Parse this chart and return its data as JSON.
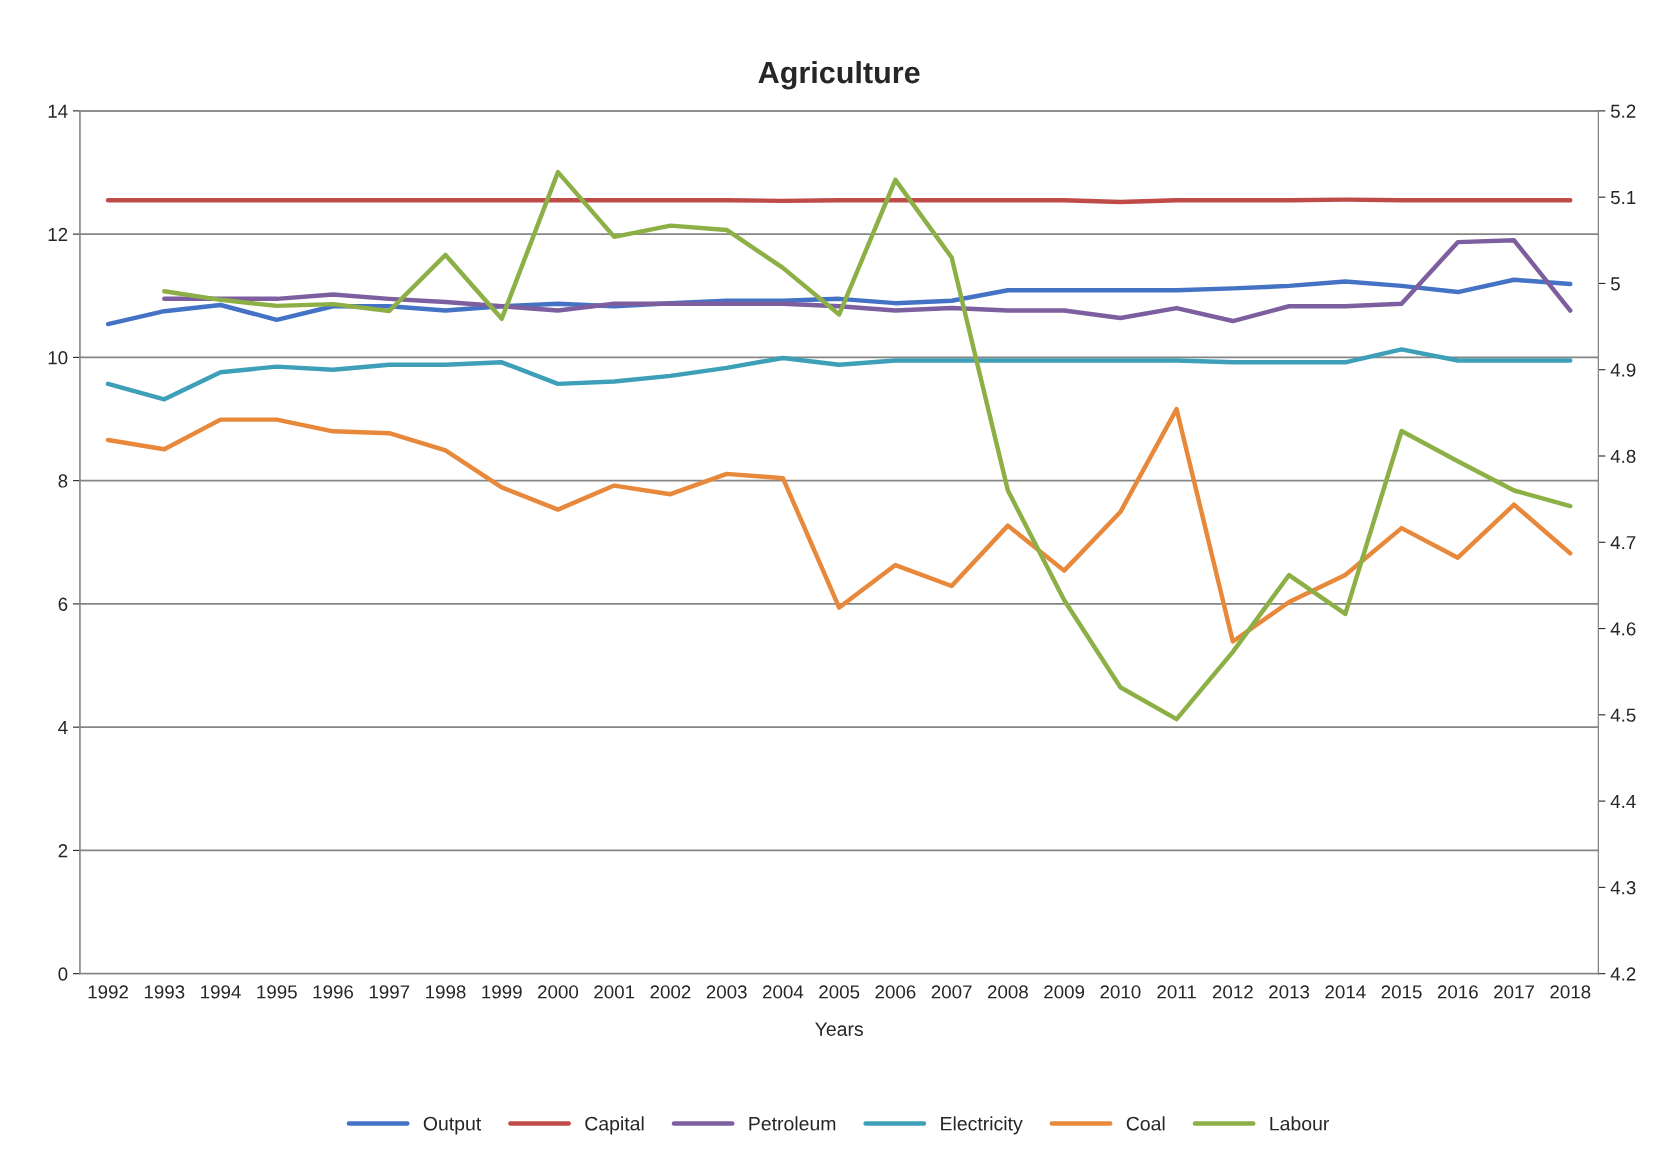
{
  "chart_data": {
    "type": "line",
    "title": "Agriculture",
    "xlabel": "Years",
    "categories": [
      "1992",
      "1993",
      "1994",
      "1995",
      "1996",
      "1997",
      "1998",
      "1999",
      "2000",
      "2001",
      "2002",
      "2003",
      "2004",
      "2005",
      "2006",
      "2007",
      "2008",
      "2009",
      "2010",
      "2011",
      "2012",
      "2013",
      "2014",
      "2015",
      "2016",
      "2017",
      "2018"
    ],
    "series": [
      {
        "name": "Output",
        "color": "#4472c4",
        "values": [
          10.54,
          10.75,
          10.85,
          10.61,
          10.83,
          10.83,
          10.76,
          10.83,
          10.87,
          10.83,
          10.88,
          10.92,
          10.92,
          10.95,
          10.88,
          10.92,
          11.09,
          11.09,
          11.09,
          11.09,
          11.12,
          11.16,
          11.23,
          11.16,
          11.06,
          11.26,
          11.19
        ]
      },
      {
        "name": "Capital",
        "color": "#be4b48",
        "values": [
          12.55,
          12.55,
          12.55,
          12.55,
          12.55,
          12.55,
          12.55,
          12.55,
          12.55,
          12.55,
          12.55,
          12.55,
          12.54,
          12.55,
          12.55,
          12.55,
          12.55,
          12.55,
          12.52,
          12.55,
          12.55,
          12.55,
          12.56,
          12.55,
          12.55,
          12.55,
          12.55
        ]
      },
      {
        "name": "Petroleum",
        "color": "#7d5fa0",
        "values": [
          null,
          10.95,
          10.95,
          10.95,
          11.02,
          10.95,
          10.9,
          10.83,
          10.76,
          10.87,
          10.87,
          10.87,
          10.87,
          10.83,
          10.76,
          10.8,
          10.76,
          10.76,
          10.64,
          10.8,
          10.59,
          10.83,
          10.83,
          10.87,
          11.87,
          11.9,
          10.76
        ]
      },
      {
        "name": "Electricity",
        "color": "#3ea0b8",
        "values": [
          9.57,
          9.32,
          9.76,
          9.85,
          9.8,
          9.88,
          9.88,
          9.92,
          9.57,
          9.61,
          9.7,
          9.83,
          9.99,
          9.88,
          9.95,
          9.95,
          9.95,
          9.95,
          9.95,
          9.95,
          9.92,
          9.92,
          9.92,
          10.13,
          9.95,
          9.95,
          9.95
        ]
      },
      {
        "name": "Coal",
        "color": "#e8883a",
        "values": [
          8.66,
          8.51,
          8.99,
          8.99,
          8.8,
          8.77,
          8.49,
          7.89,
          7.53,
          7.92,
          7.78,
          8.11,
          8.04,
          5.94,
          6.63,
          6.29,
          7.27,
          6.54,
          7.49,
          9.16,
          5.39,
          6.03,
          6.47,
          7.23,
          6.75,
          7.61,
          6.82
        ]
      },
      {
        "name": "Labour",
        "color": "#8cb046",
        "axis": "y2",
        "values": [
          null,
          4.991,
          4.981,
          4.974,
          4.976,
          4.968,
          5.033,
          4.959,
          5.129,
          5.054,
          5.067,
          5.062,
          5.018,
          4.964,
          5.12,
          5.03,
          4.76,
          4.633,
          4.532,
          4.495,
          4.573,
          4.662,
          4.617,
          4.829,
          4.794,
          4.76,
          4.742
        ]
      }
    ],
    "ylim": [
      0,
      14
    ],
    "yticks": [
      0,
      2,
      4,
      6,
      8,
      10,
      12,
      14
    ],
    "y2lim": [
      4.2,
      5.2
    ],
    "y2ticks": [
      4.2,
      4.3,
      4.4,
      4.5,
      4.6,
      4.7,
      4.8,
      4.9,
      5,
      5.1,
      5.2
    ],
    "grid": "y",
    "legend": "bottom"
  }
}
